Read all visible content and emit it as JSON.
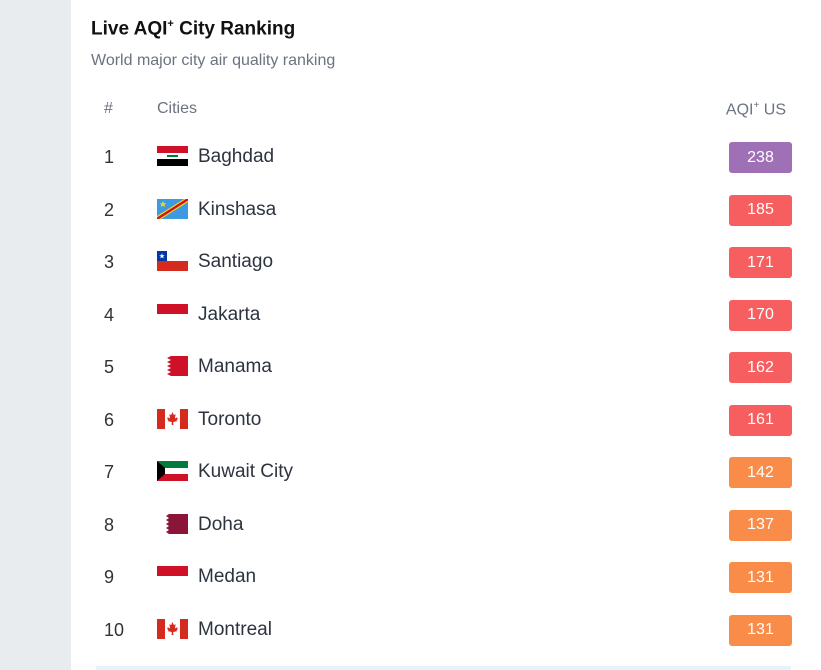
{
  "widget": {
    "title": "Live AQI",
    "title_sup": "+",
    "title_tail": " City Ranking",
    "subtitle": "World major city air quality ranking"
  },
  "header": {
    "rank": "#",
    "cities": "Cities",
    "aqi": "AQI",
    "aqi_sup": "+",
    "aqi_tail": " US"
  },
  "rankings": [
    {
      "rank": "1",
      "city": "Baghdad",
      "aqi": "238",
      "flag": "iraq-flag-icon",
      "color": "#a070b6"
    },
    {
      "rank": "2",
      "city": "Kinshasa",
      "aqi": "185",
      "flag": "dr-congo-flag-icon",
      "color": "#f65e5f"
    },
    {
      "rank": "3",
      "city": "Santiago",
      "aqi": "171",
      "flag": "chile-flag-icon",
      "color": "#f65e5f"
    },
    {
      "rank": "4",
      "city": "Jakarta",
      "aqi": "170",
      "flag": "indonesia-flag-icon",
      "color": "#f65e5f"
    },
    {
      "rank": "5",
      "city": "Manama",
      "aqi": "162",
      "flag": "bahrain-flag-icon",
      "color": "#f65e5f"
    },
    {
      "rank": "6",
      "city": "Toronto",
      "aqi": "161",
      "flag": "canada-flag-icon",
      "color": "#f65e5f"
    },
    {
      "rank": "7",
      "city": "Kuwait City",
      "aqi": "142",
      "flag": "kuwait-flag-icon",
      "color": "#fa8c4a"
    },
    {
      "rank": "8",
      "city": "Doha",
      "aqi": "137",
      "flag": "qatar-flag-icon",
      "color": "#fa8c4a"
    },
    {
      "rank": "9",
      "city": "Medan",
      "aqi": "131",
      "flag": "indonesia-flag-icon",
      "color": "#fa8c4a"
    },
    {
      "rank": "10",
      "city": "Montreal",
      "aqi": "131",
      "flag": "canada-flag-icon",
      "color": "#fa8c4a"
    }
  ]
}
